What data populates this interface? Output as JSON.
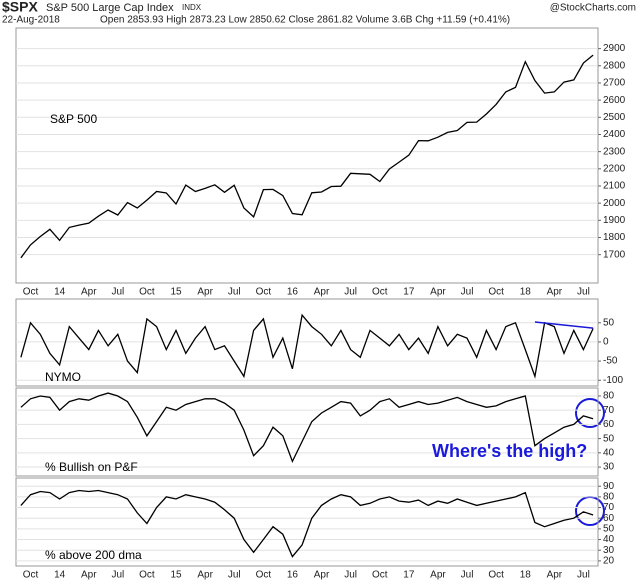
{
  "header": {
    "symbol": "$SPX",
    "name": "S&P 500 Large Cap Index",
    "exchange": "INDX",
    "date": "22-Aug-2018",
    "quote": "Open 2853.93 High 2873.23 Low 2850.62 Close 2861.82 Volume 3.6B Chg +11.59 (+0.41%)",
    "credit": "@StockCharts.com"
  },
  "chart_data": [
    {
      "type": "line",
      "label": "S&P 500",
      "color": "#000000",
      "grid": true,
      "categories": [
        null,
        "Oct",
        null,
        null,
        "14",
        null,
        null,
        "Apr",
        null,
        null,
        "Jul",
        null,
        null,
        "Oct",
        null,
        null,
        "15",
        null,
        null,
        "Apr",
        null,
        null,
        "Jul",
        null,
        null,
        "Oct",
        null,
        null,
        "16",
        null,
        null,
        "Apr",
        null,
        null,
        "Jul",
        null,
        null,
        "Oct",
        null,
        null,
        "17",
        null,
        null,
        "Apr",
        null,
        null,
        "Jul",
        null,
        null,
        "Oct",
        null,
        null,
        "18",
        null,
        null,
        "Apr",
        null,
        null,
        "Jul",
        null
      ],
      "values": [
        1682,
        1757,
        1806,
        1848,
        1783,
        1859,
        1872,
        1884,
        1924,
        1960,
        1931,
        2003,
        1972,
        2018,
        2068,
        2059,
        1995,
        2105,
        2068,
        2086,
        2107,
        2063,
        2104,
        1972,
        1920,
        2079,
        2080,
        2044,
        1940,
        1932,
        2060,
        2065,
        2097,
        2099,
        2174,
        2171,
        2168,
        2126,
        2199,
        2239,
        2279,
        2364,
        2363,
        2384,
        2412,
        2423,
        2470,
        2472,
        2519,
        2575,
        2648,
        2674,
        2824,
        2714,
        2641,
        2648,
        2705,
        2718,
        2816,
        2862
      ],
      "ylim": [
        1535,
        3020
      ],
      "yticks": [
        1700,
        1800,
        1900,
        2000,
        2100,
        2200,
        2300,
        2400,
        2500,
        2600,
        2700,
        2800,
        2900
      ]
    },
    {
      "type": "line",
      "label": "NYMO",
      "color": "#000000",
      "grid": true,
      "values": [
        -40,
        50,
        20,
        -30,
        -60,
        40,
        10,
        -20,
        30,
        -10,
        20,
        -50,
        -80,
        60,
        40,
        -20,
        30,
        -30,
        10,
        40,
        -20,
        -10,
        -50,
        -90,
        30,
        60,
        -40,
        10,
        -70,
        70,
        40,
        20,
        -10,
        30,
        -20,
        -40,
        30,
        10,
        -10,
        20,
        -20,
        10,
        -30,
        40,
        -10,
        20,
        10,
        -40,
        30,
        -20,
        40,
        50,
        -20,
        -90,
        50,
        40,
        -30,
        30,
        -20,
        35
      ],
      "ylim": [
        -115,
        112
      ],
      "yticks": [
        -100,
        -50,
        0,
        50
      ],
      "trendline": {
        "x": [
          53,
          59
        ],
        "y": [
          52,
          36
        ],
        "color": "#1a1adb"
      }
    },
    {
      "type": "line",
      "label": "% Bullish on P&F",
      "color": "#000000",
      "grid": true,
      "values": [
        72,
        78,
        80,
        79,
        70,
        76,
        78,
        77,
        80,
        82,
        80,
        76,
        65,
        52,
        62,
        72,
        70,
        74,
        76,
        78,
        78,
        75,
        70,
        56,
        38,
        45,
        58,
        52,
        34,
        48,
        62,
        68,
        72,
        76,
        75,
        66,
        70,
        76,
        78,
        72,
        74,
        76,
        74,
        75,
        77,
        79,
        76,
        74,
        72,
        73,
        76,
        78,
        80,
        45,
        50,
        54,
        58,
        60,
        66,
        64
      ],
      "ylim": [
        23.7,
        85.6
      ],
      "yticks": [
        30,
        40,
        50,
        60,
        70,
        80
      ],
      "annotation": "Where's the high?"
    },
    {
      "type": "line",
      "label": "% above 200 dma",
      "color": "#000000",
      "grid": true,
      "categories": [
        null,
        "Oct",
        null,
        null,
        "14",
        null,
        null,
        "Apr",
        null,
        null,
        "Jul",
        null,
        null,
        "Oct",
        null,
        null,
        "15",
        null,
        null,
        "Apr",
        null,
        null,
        "Jul",
        null,
        null,
        "Oct",
        null,
        null,
        "16",
        null,
        null,
        "Apr",
        null,
        null,
        "Jul",
        null,
        null,
        "Oct",
        null,
        null,
        "17",
        null,
        null,
        "Apr",
        null,
        null,
        "Jul",
        null,
        null,
        "Oct",
        null,
        null,
        "18",
        null,
        null,
        "Apr",
        null,
        null,
        "Jul",
        null
      ],
      "values": [
        72,
        82,
        85,
        84,
        78,
        84,
        86,
        85,
        86,
        84,
        82,
        78,
        65,
        55,
        70,
        80,
        78,
        82,
        80,
        78,
        75,
        68,
        60,
        40,
        28,
        40,
        52,
        45,
        24,
        35,
        60,
        72,
        78,
        82,
        80,
        72,
        74,
        78,
        80,
        76,
        75,
        77,
        72,
        76,
        74,
        78,
        75,
        72,
        74,
        76,
        78,
        80,
        84,
        56,
        52,
        55,
        58,
        60,
        66,
        63
      ],
      "ylim": [
        15.2,
        97.7
      ],
      "yticks": [
        20,
        30,
        40,
        50,
        60,
        70,
        80,
        90
      ]
    }
  ]
}
